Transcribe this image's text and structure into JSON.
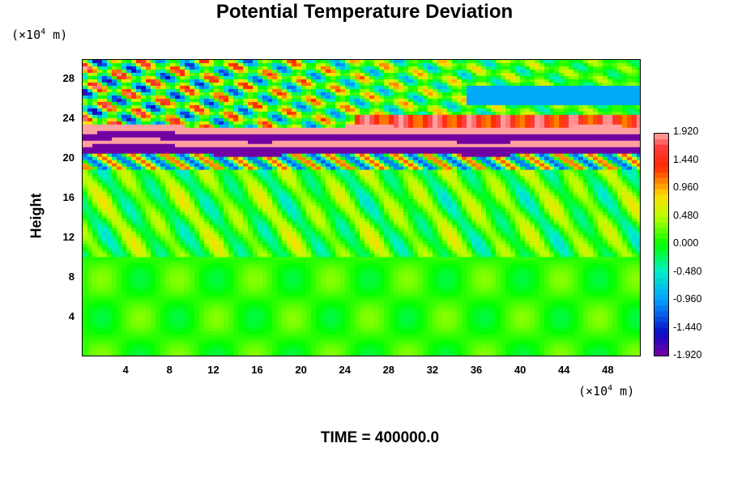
{
  "chart_data": {
    "type": "heatmap",
    "title": "Potential Temperature Deviation",
    "ylabel": "Height",
    "y_unit_prefix": "(×10",
    "y_unit_exp": "4",
    "y_unit_suffix": " m)",
    "x_unit_prefix": "(×10",
    "x_unit_exp": "4",
    "x_unit_suffix": " m)",
    "xlim": [
      0,
      51
    ],
    "ylim": [
      0,
      30
    ],
    "x_ticks": [
      "4",
      "8",
      "12",
      "16",
      "20",
      "24",
      "28",
      "32",
      "36",
      "40",
      "44",
      "48"
    ],
    "y_ticks": [
      "4",
      "8",
      "12",
      "16",
      "20",
      "24",
      "28"
    ],
    "colorbar": {
      "range": [
        -1.92,
        1.92
      ],
      "tick_labels": [
        "1.920",
        "1.440",
        "0.960",
        "0.480",
        "0.000",
        "-0.480",
        "-0.960",
        "-1.440",
        "-1.920"
      ]
    },
    "footer": "TIME = 400000.0",
    "field_description": {
      "layers": [
        {
          "y_range": [
            20.5,
            21.2
          ],
          "value": -1.9
        },
        {
          "y_range": [
            21.2,
            21.8
          ],
          "value": 1.9
        },
        {
          "y_range": [
            21.8,
            22.5
          ],
          "value": -1.9
        },
        {
          "y_range": [
            22.5,
            23.2
          ],
          "value": 1.9
        }
      ],
      "background_value": 0.1,
      "wave_region_y": [
        23,
        30
      ]
    }
  }
}
